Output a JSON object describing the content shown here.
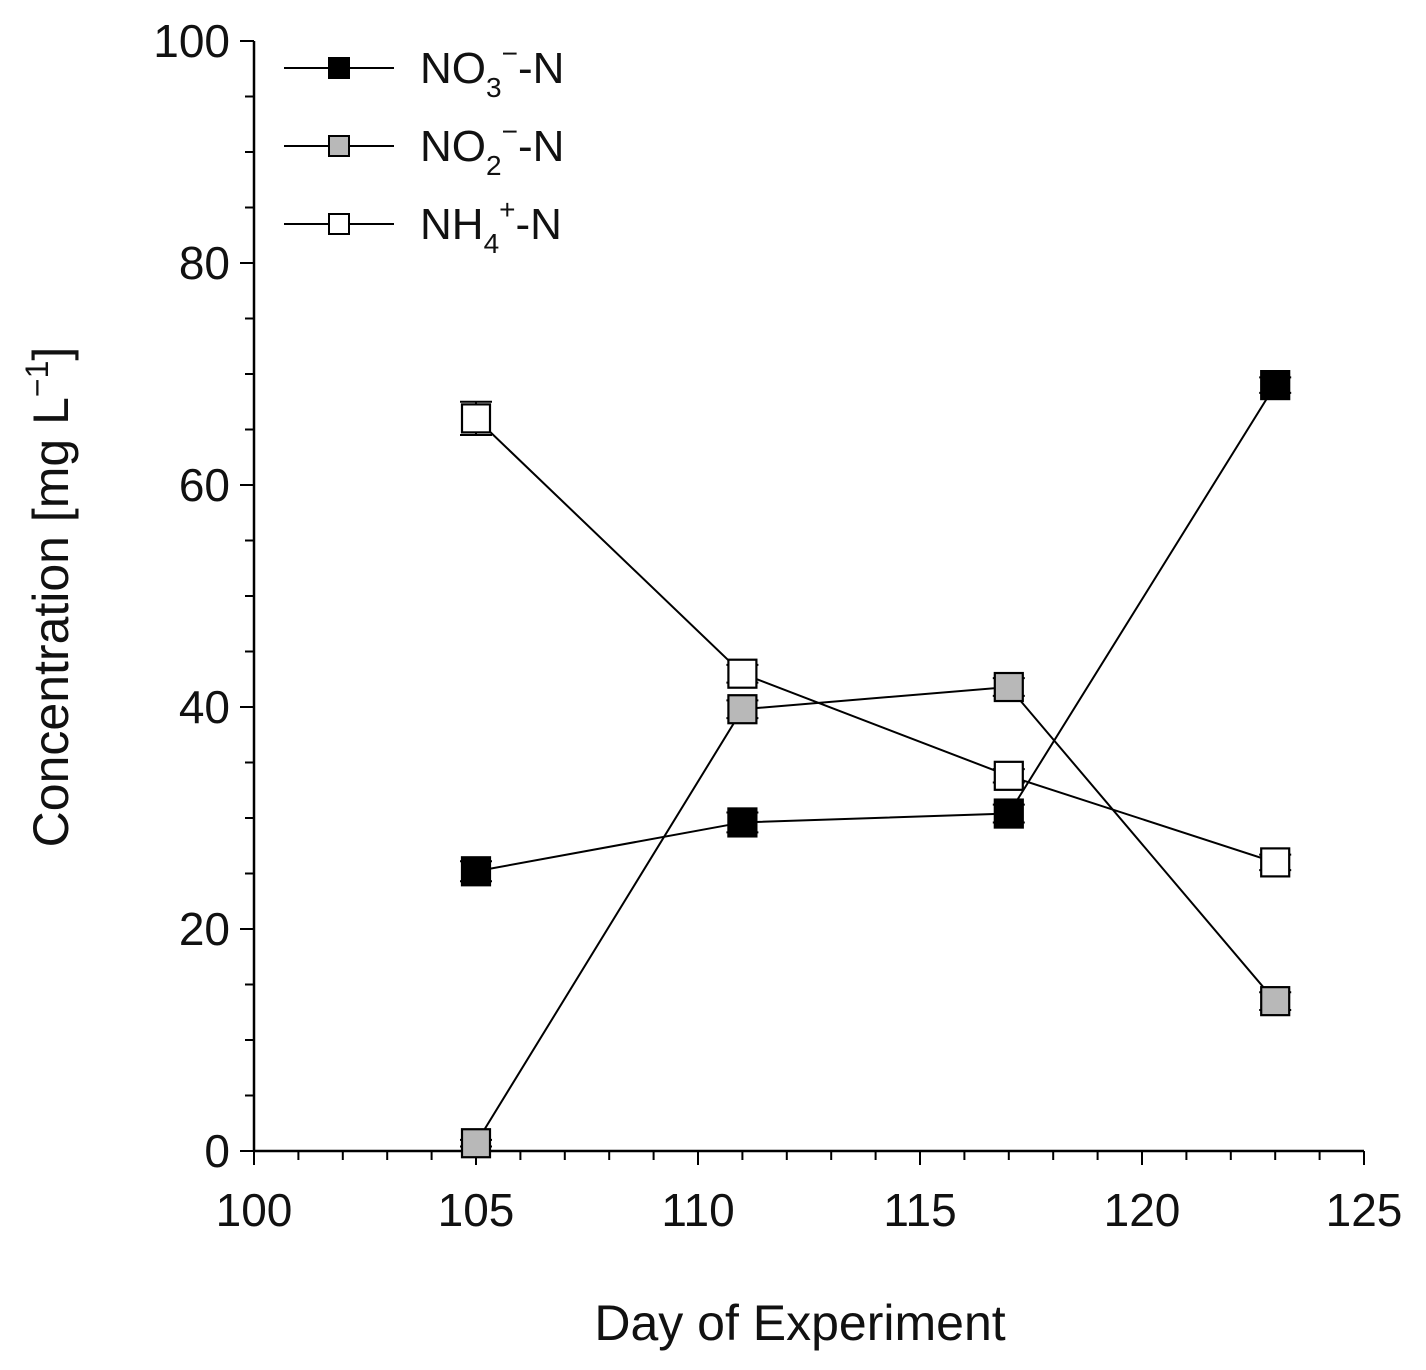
{
  "chart_data": {
    "type": "line",
    "title": "",
    "xlabel": "Day of Experiment",
    "ylabel": "Concentration [mg L⁻¹]",
    "ylabel_parts": {
      "main": "Concentration [mg L",
      "sup": "−1",
      "close": "]"
    },
    "xlim": [
      100,
      125
    ],
    "ylim": [
      0,
      100
    ],
    "x_ticks": [
      100,
      105,
      110,
      115,
      120,
      125
    ],
    "y_ticks": [
      0,
      20,
      40,
      60,
      80,
      100
    ],
    "x_minor_step": 1,
    "y_minor_step": 5,
    "grid": false,
    "legend_position": "top-left",
    "series": [
      {
        "name": "NO3−-N",
        "label_parts": {
          "base": "NO",
          "sub": "3",
          "sup": "−",
          "suffix": "-N"
        },
        "marker_fill": "#000000",
        "x": [
          105,
          111,
          117,
          123
        ],
        "y": [
          25.2,
          29.6,
          30.4,
          69.0
        ],
        "err": [
          0.9,
          0.9,
          0.8,
          0.7
        ]
      },
      {
        "name": "NO2−-N",
        "label_parts": {
          "base": "NO",
          "sub": "2",
          "sup": "−",
          "suffix": "-N"
        },
        "marker_fill": "#b8b8b8",
        "x": [
          105,
          111,
          117,
          123
        ],
        "y": [
          0.7,
          39.8,
          41.8,
          13.5
        ],
        "err": [
          0.3,
          0.8,
          0.8,
          0.8
        ]
      },
      {
        "name": "NH4+-N",
        "label_parts": {
          "base": "NH",
          "sub": "4",
          "sup": "+",
          "suffix": "-N"
        },
        "marker_fill": "#ffffff",
        "x": [
          105,
          111,
          117,
          123
        ],
        "y": [
          66.0,
          43.0,
          33.8,
          26.0
        ],
        "err": [
          1.5,
          0.8,
          0.6,
          0.7
        ]
      }
    ]
  }
}
